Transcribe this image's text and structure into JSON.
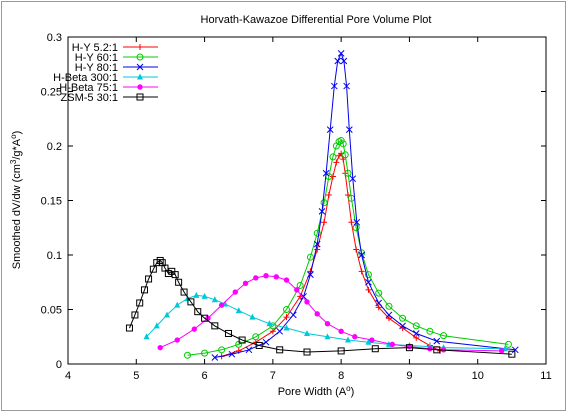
{
  "chart_data": {
    "type": "line",
    "title": "Horvath-Kawazoe Differential Pore Volume Plot",
    "xlabel": "Pore Width (A°)",
    "ylabel": "Smoothed dV/dw (cm³/g*A°)",
    "xlim": [
      4,
      11
    ],
    "ylim": [
      0,
      0.3
    ],
    "xticks": [
      "4",
      "5",
      "6",
      "7",
      "8",
      "9",
      "10",
      "11"
    ],
    "yticks": [
      "0",
      "0.05",
      "0.1",
      "0.15",
      "0.2",
      "0.25",
      "0.3"
    ],
    "legend_position": "top-left",
    "grid": false,
    "series": [
      {
        "name": "H-Y 5.2:1",
        "color": "#ff0000",
        "marker": "plus",
        "x": [
          6.25,
          6.5,
          6.75,
          7.0,
          7.2,
          7.4,
          7.55,
          7.65,
          7.75,
          7.82,
          7.88,
          7.93,
          7.97,
          8.0,
          8.03,
          8.06,
          8.1,
          8.15,
          8.22,
          8.3,
          8.4,
          8.55,
          8.7,
          8.9,
          9.1,
          9.3,
          9.45
        ],
        "y": [
          0.007,
          0.012,
          0.02,
          0.03,
          0.043,
          0.062,
          0.085,
          0.105,
          0.13,
          0.155,
          0.172,
          0.185,
          0.191,
          0.193,
          0.188,
          0.175,
          0.155,
          0.13,
          0.105,
          0.085,
          0.068,
          0.052,
          0.042,
          0.033,
          0.024,
          0.017,
          0.012
        ]
      },
      {
        "name": "H-Y 60:1",
        "color": "#00cc00",
        "marker": "circle",
        "x": [
          5.75,
          6.0,
          6.25,
          6.5,
          6.75,
          7.0,
          7.2,
          7.4,
          7.55,
          7.65,
          7.75,
          7.82,
          7.88,
          7.93,
          7.97,
          8.0,
          8.03,
          8.06,
          8.1,
          8.15,
          8.22,
          8.3,
          8.4,
          8.55,
          8.7,
          8.9,
          9.1,
          9.3,
          9.5,
          10.45
        ],
        "y": [
          0.008,
          0.01,
          0.013,
          0.018,
          0.025,
          0.035,
          0.05,
          0.072,
          0.098,
          0.12,
          0.148,
          0.172,
          0.19,
          0.2,
          0.204,
          0.205,
          0.202,
          0.192,
          0.175,
          0.152,
          0.125,
          0.102,
          0.082,
          0.065,
          0.053,
          0.042,
          0.035,
          0.03,
          0.026,
          0.018
        ]
      },
      {
        "name": "H-Y 80:1",
        "color": "#0000ee",
        "marker": "x",
        "x": [
          6.15,
          6.4,
          6.65,
          6.9,
          7.1,
          7.3,
          7.45,
          7.55,
          7.65,
          7.72,
          7.78,
          7.84,
          7.9,
          7.95,
          8.0,
          8.04,
          8.08,
          8.12,
          8.17,
          8.23,
          8.3,
          8.4,
          8.55,
          8.7,
          8.9,
          9.1,
          9.4,
          10.55
        ],
        "y": [
          0.006,
          0.009,
          0.013,
          0.02,
          0.03,
          0.045,
          0.062,
          0.082,
          0.11,
          0.14,
          0.175,
          0.215,
          0.255,
          0.278,
          0.285,
          0.278,
          0.255,
          0.215,
          0.17,
          0.13,
          0.1,
          0.075,
          0.056,
          0.045,
          0.035,
          0.028,
          0.021,
          0.013
        ]
      },
      {
        "name": "H-Beta 300:1",
        "color": "#00c8d8",
        "marker": "triangle",
        "x": [
          5.15,
          5.3,
          5.45,
          5.6,
          5.75,
          5.88,
          6.0,
          6.15,
          6.3,
          6.5,
          6.7,
          6.95,
          7.2,
          7.5,
          7.8,
          8.1,
          8.4,
          8.7,
          9.0,
          9.3,
          9.5,
          10.4
        ],
        "y": [
          0.025,
          0.035,
          0.045,
          0.054,
          0.06,
          0.063,
          0.062,
          0.059,
          0.055,
          0.049,
          0.043,
          0.037,
          0.033,
          0.028,
          0.025,
          0.022,
          0.02,
          0.018,
          0.017,
          0.016,
          0.015,
          0.014
        ]
      },
      {
        "name": "H-Beta 75:1",
        "color": "#ff00ff",
        "marker": "dot",
        "x": [
          5.35,
          5.6,
          5.85,
          6.05,
          6.25,
          6.45,
          6.6,
          6.75,
          6.9,
          7.05,
          7.2,
          7.35,
          7.5,
          7.65,
          7.8,
          8.0,
          8.2,
          8.45,
          8.75,
          9.0,
          9.3,
          9.5,
          10.35
        ],
        "y": [
          0.015,
          0.022,
          0.032,
          0.042,
          0.054,
          0.066,
          0.074,
          0.079,
          0.081,
          0.08,
          0.077,
          0.068,
          0.057,
          0.046,
          0.037,
          0.03,
          0.025,
          0.022,
          0.018,
          0.016,
          0.014,
          0.013,
          0.012
        ]
      },
      {
        "name": "ZSM-5 30:1",
        "color": "#000000",
        "marker": "square",
        "x": [
          4.9,
          4.98,
          5.05,
          5.12,
          5.18,
          5.25,
          5.3,
          5.35,
          5.38,
          5.42,
          5.47,
          5.52,
          5.57,
          5.62,
          5.7,
          5.8,
          5.9,
          6.0,
          6.15,
          6.35,
          6.55,
          6.8,
          7.1,
          7.5,
          8.0,
          8.5,
          9.0,
          9.4,
          10.5
        ],
        "y": [
          0.033,
          0.045,
          0.056,
          0.068,
          0.078,
          0.087,
          0.093,
          0.095,
          0.093,
          0.088,
          0.083,
          0.085,
          0.082,
          0.075,
          0.066,
          0.057,
          0.048,
          0.042,
          0.035,
          0.028,
          0.022,
          0.017,
          0.013,
          0.011,
          0.012,
          0.014,
          0.015,
          0.013,
          0.009
        ]
      }
    ]
  }
}
